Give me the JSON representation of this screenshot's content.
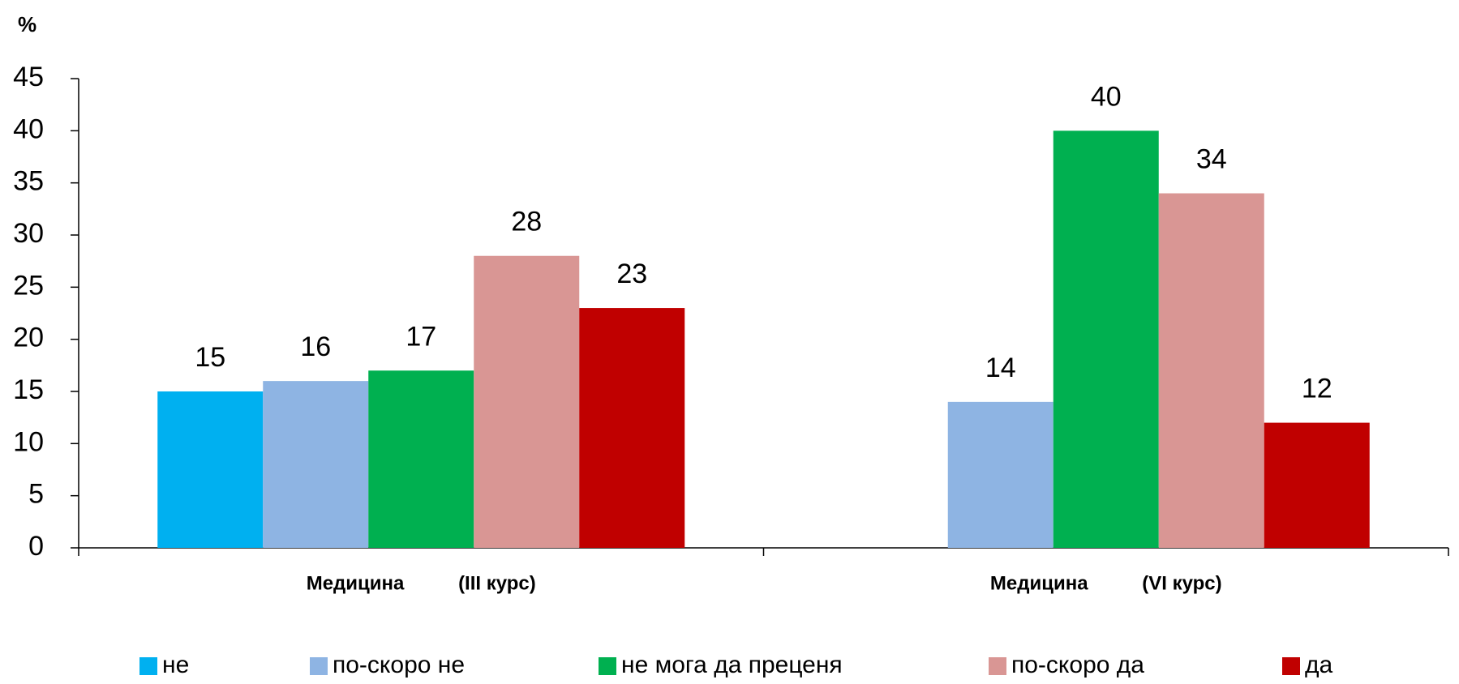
{
  "chart_data": {
    "type": "bar",
    "y_label": "%",
    "categories": [
      "Медицина          (III курс)",
      "Медицина          (VI курс)"
    ],
    "series": [
      {
        "name": "не",
        "color": "#00b0f0",
        "values": [
          15,
          null
        ]
      },
      {
        "name": "по-скоро не",
        "color": "#8eb4e3",
        "values": [
          16,
          14
        ]
      },
      {
        "name": "не мога да преценя",
        "color": "#00b050",
        "values": [
          17,
          40
        ]
      },
      {
        "name": "по-скоро да",
        "color": "#d99694",
        "values": [
          28,
          34
        ]
      },
      {
        "name": "да",
        "color": "#c00000",
        "values": [
          23,
          12
        ]
      }
    ],
    "ylim": [
      0,
      45
    ],
    "yticks": [
      0,
      5,
      10,
      15,
      20,
      25,
      30,
      35,
      40,
      45
    ],
    "legend": "bottom"
  }
}
